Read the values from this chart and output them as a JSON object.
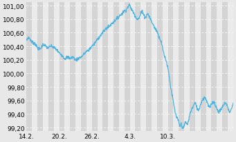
{
  "title": "",
  "xlabel": "",
  "ylabel": "",
  "xlim": [
    0,
    38
  ],
  "ylim": [
    99.15,
    101.05
  ],
  "yticks": [
    99.2,
    99.4,
    99.6,
    99.8,
    100.0,
    100.2,
    100.4,
    100.6,
    100.8,
    101.0
  ],
  "xtick_labels": [
    "14.2.",
    "20.2.",
    "26.2.",
    "4.3.",
    "10.3."
  ],
  "xtick_positions": [
    0,
    6,
    12,
    19,
    26
  ],
  "line_color": "#4db3e0",
  "bg_color": "#e8e8e8",
  "stripe_dark": "#d4d4d4",
  "stripe_light": "#ebebeb",
  "grid_color": "#ffffff",
  "waypoints_x": [
    0,
    0.5,
    1,
    1.5,
    2,
    2.5,
    3,
    3.5,
    4,
    4.5,
    5,
    5.5,
    6,
    6.5,
    7,
    7.5,
    8,
    8.5,
    9,
    9.5,
    10,
    10.5,
    11,
    11.5,
    12,
    12.5,
    13,
    13.5,
    14,
    14.5,
    15,
    15.5,
    16,
    16.5,
    17,
    17.5,
    18,
    18.5,
    19,
    19.2,
    19.5,
    20,
    20.5,
    21,
    21.3,
    21.5,
    22,
    22.3,
    22.5,
    22.8,
    23,
    23.3,
    23.5,
    24,
    24.3,
    24.7,
    25,
    25.3,
    25.7,
    26,
    26.3,
    26.6,
    27,
    27.3,
    27.6,
    28,
    28.2,
    28.4,
    28.6,
    28.8,
    29,
    29.2,
    29.5,
    30,
    30.3,
    30.7,
    31,
    31.3,
    31.6,
    32,
    32.3,
    32.6,
    33,
    33.3,
    33.7,
    34,
    34.3,
    34.7,
    35,
    35.3,
    35.7,
    36,
    36.3,
    36.7,
    37,
    37.3,
    37.7,
    38
  ],
  "waypoints_y": [
    100.48,
    100.52,
    100.46,
    100.44,
    100.38,
    100.36,
    100.42,
    100.4,
    100.38,
    100.4,
    100.38,
    100.35,
    100.3,
    100.27,
    100.22,
    100.24,
    100.22,
    100.24,
    100.2,
    100.22,
    100.24,
    100.28,
    100.32,
    100.35,
    100.4,
    100.44,
    100.5,
    100.55,
    100.6,
    100.65,
    100.68,
    100.72,
    100.76,
    100.8,
    100.84,
    100.88,
    100.92,
    100.96,
    101.0,
    100.96,
    100.92,
    100.85,
    100.8,
    100.88,
    100.92,
    100.88,
    100.84,
    100.88,
    100.85,
    100.8,
    100.76,
    100.72,
    100.68,
    100.62,
    100.55,
    100.48,
    100.38,
    100.28,
    100.18,
    100.08,
    99.92,
    99.76,
    99.58,
    99.44,
    99.35,
    99.28,
    99.22,
    99.25,
    99.22,
    99.2,
    99.22,
    99.28,
    99.25,
    99.38,
    99.46,
    99.52,
    99.56,
    99.5,
    99.46,
    99.54,
    99.6,
    99.64,
    99.62,
    99.56,
    99.5,
    99.54,
    99.58,
    99.54,
    99.48,
    99.44,
    99.46,
    99.5,
    99.54,
    99.56,
    99.5,
    99.44,
    99.48,
    99.55
  ]
}
